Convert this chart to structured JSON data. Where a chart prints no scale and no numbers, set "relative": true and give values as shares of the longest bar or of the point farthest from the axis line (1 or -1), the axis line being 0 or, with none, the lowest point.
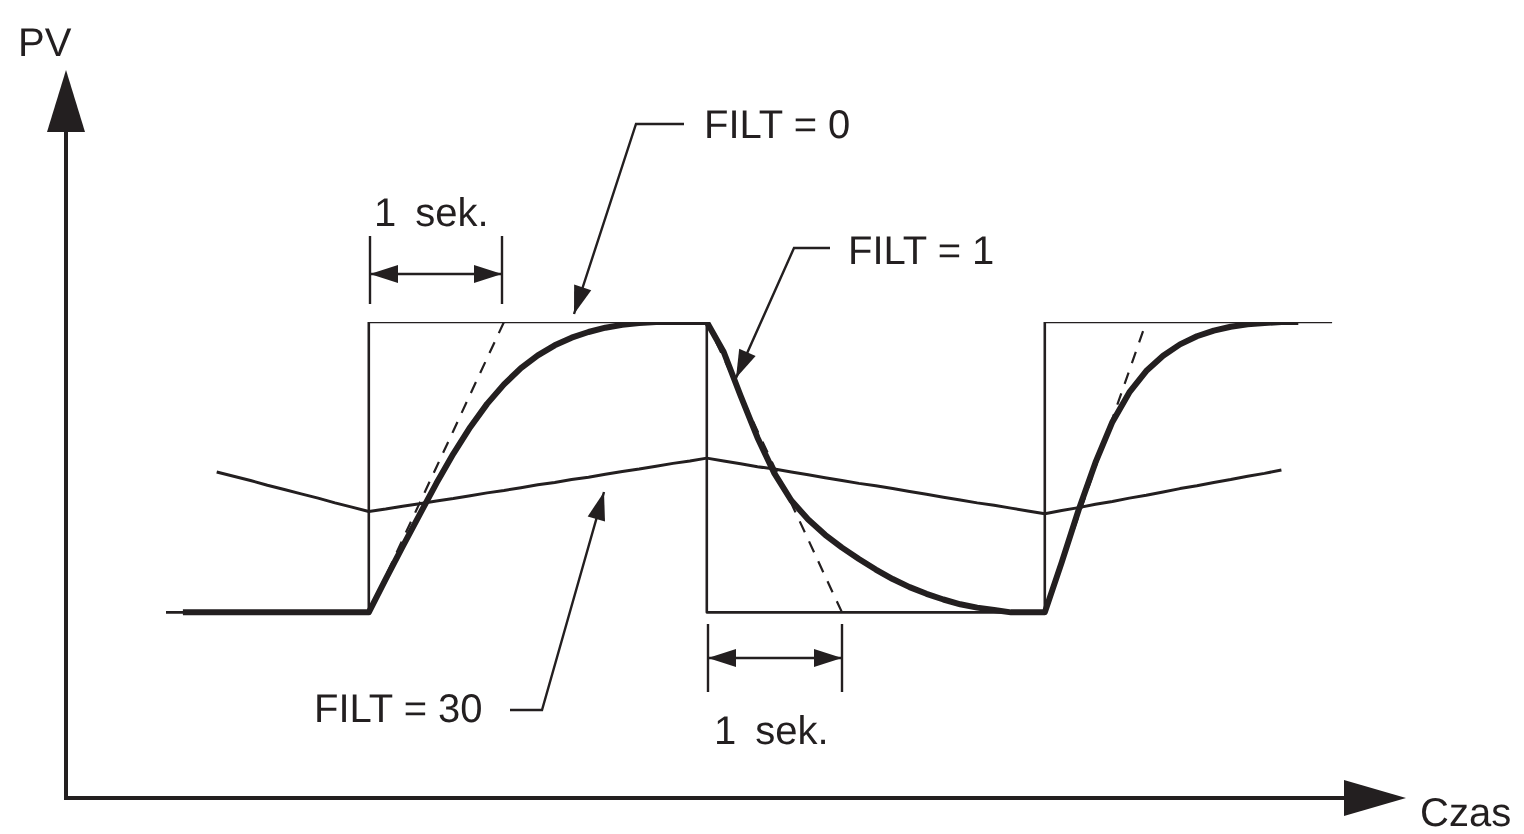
{
  "chart_data": {
    "type": "line",
    "relative": true,
    "marker": "none",
    "xlabel": "Czas",
    "annotations": [
      "PV",
      "1 sek.",
      "1 sek."
    ],
    "categories": [
      null,
      null,
      null,
      null,
      null,
      null,
      null,
      null,
      null,
      null,
      null,
      null,
      null,
      null,
      null,
      null,
      null,
      null,
      null,
      null,
      null,
      null,
      null,
      null,
      null,
      null,
      null,
      null,
      null,
      null,
      null,
      null,
      null,
      null,
      null,
      null,
      null,
      null,
      null,
      null,
      null,
      null,
      null,
      null,
      null,
      null,
      null,
      null,
      null,
      null,
      null,
      null,
      null,
      null,
      null,
      null,
      null,
      null,
      null,
      null,
      null,
      null,
      null,
      null,
      null,
      null,
      null,
      null,
      null,
      null
    ],
    "series": [
      {
        "name": "FILT = 0",
        "type": "step",
        "color": "#231f20",
        "values": [
          0.39,
          0.39,
          0.39,
          0.39,
          0.39,
          0.39,
          0.39,
          0.39,
          0.39,
          0.39,
          0.39,
          0.39,
          1,
          1,
          1,
          1,
          1,
          1,
          1,
          1,
          1,
          1,
          1,
          1,
          1,
          1,
          1,
          1,
          1,
          1,
          1,
          1,
          0.39,
          0.39,
          0.39,
          0.39,
          0.39,
          0.39,
          0.39,
          0.39,
          0.39,
          0.39,
          0.39,
          0.39,
          0.39,
          0.39,
          0.39,
          0.39,
          0.39,
          0.39,
          0.39,
          0.39,
          1,
          1,
          1,
          1,
          1,
          1,
          1,
          1,
          1,
          1,
          1,
          1,
          1,
          1,
          1,
          1,
          1,
          1
        ]
      },
      {
        "name": "FILT = 1",
        "type": "line",
        "color": "#231f20",
        "values": [
          null,
          0.39,
          0.39,
          0.39,
          0.39,
          0.39,
          0.39,
          0.39,
          0.39,
          0.39,
          0.39,
          0.39,
          0.39,
          0.46,
          0.528,
          0.595,
          0.661,
          0.723,
          0.779,
          0.828,
          0.869,
          0.903,
          0.93,
          0.951,
          0.967,
          0.979,
          0.988,
          0.994,
          0.998,
          1,
          1,
          1,
          1,
          0.937,
          0.845,
          0.757,
          0.682,
          0.625,
          0.585,
          0.553,
          0.526,
          0.502,
          0.48,
          0.46,
          0.443,
          0.429,
          0.417,
          0.407,
          0.4,
          0.395,
          0.39,
          0.39,
          0.39,
          0.495,
          0.605,
          0.705,
          0.79,
          0.852,
          0.897,
          0.929,
          0.953,
          0.97,
          0.982,
          0.99,
          0.995,
          0.998,
          1,
          1,
          null,
          null
        ]
      },
      {
        "name": "FILT = 30",
        "type": "line",
        "color": "#231f20",
        "values": [
          null,
          null,
          null,
          0.685,
          0.676,
          0.667,
          0.657,
          0.648,
          0.639,
          0.63,
          0.62,
          0.611,
          0.602,
          0.607,
          0.613,
          0.618,
          0.624,
          0.629,
          0.635,
          0.641,
          0.646,
          0.652,
          0.658,
          0.663,
          0.669,
          0.674,
          0.68,
          0.686,
          0.691,
          0.697,
          0.703,
          0.708,
          0.714,
          0.708,
          0.702,
          0.696,
          0.691,
          0.685,
          0.679,
          0.673,
          0.667,
          0.661,
          0.656,
          0.65,
          0.644,
          0.638,
          0.632,
          0.626,
          0.62,
          0.615,
          0.609,
          0.603,
          0.597,
          0.604,
          0.61,
          0.617,
          0.623,
          0.63,
          0.636,
          0.643,
          0.65,
          0.656,
          0.663,
          0.669,
          0.676,
          0.682,
          0.689,
          null,
          null,
          null
        ]
      },
      {
        "type": "line",
        "line_style": "dashed",
        "color": "#231f20",
        "values": [
          null,
          null,
          null,
          null,
          null,
          null,
          null,
          null,
          null,
          null,
          null,
          null,
          0.39,
          0.466,
          0.543,
          0.619,
          0.695,
          0.771,
          0.848,
          0.924,
          1,
          null,
          null,
          null,
          null,
          null,
          null,
          null,
          null,
          null,
          null,
          null,
          null,
          null,
          null,
          null,
          null,
          null,
          null,
          null,
          null,
          null,
          null,
          null,
          null,
          null,
          null,
          null,
          null,
          null,
          null,
          null,
          null,
          null,
          null,
          null,
          null,
          null,
          null,
          null,
          null,
          null,
          null,
          null,
          null,
          null,
          null,
          null,
          null,
          null
        ]
      },
      {
        "type": "line",
        "line_style": "dashed",
        "color": "#231f20",
        "values": [
          null,
          null,
          null,
          null,
          null,
          null,
          null,
          null,
          null,
          null,
          null,
          null,
          null,
          null,
          null,
          null,
          null,
          null,
          null,
          null,
          null,
          null,
          null,
          null,
          null,
          null,
          null,
          null,
          null,
          null,
          null,
          null,
          1,
          0.924,
          0.848,
          0.771,
          0.695,
          0.619,
          0.543,
          0.466,
          0.39,
          null,
          null,
          null,
          null,
          null,
          null,
          null,
          null,
          null,
          null,
          null,
          null,
          null,
          null,
          null,
          null,
          null,
          null,
          null,
          null,
          null,
          null,
          null,
          null,
          null,
          null,
          null,
          null,
          null
        ]
      },
      {
        "type": "line",
        "line_style": "dashed",
        "color": "#231f20",
        "values": [
          null,
          null,
          null,
          null,
          null,
          null,
          null,
          null,
          null,
          null,
          null,
          null,
          null,
          null,
          null,
          null,
          null,
          null,
          null,
          null,
          null,
          null,
          null,
          null,
          null,
          null,
          null,
          null,
          null,
          null,
          null,
          null,
          null,
          null,
          null,
          null,
          null,
          null,
          null,
          null,
          null,
          null,
          null,
          null,
          null,
          null,
          null,
          null,
          null,
          null,
          null,
          null,
          0.39,
          0.492,
          0.593,
          0.695,
          0.797,
          0.898,
          1,
          null,
          null,
          null,
          null,
          null,
          null,
          null,
          null,
          null,
          null,
          null
        ]
      }
    ]
  }
}
